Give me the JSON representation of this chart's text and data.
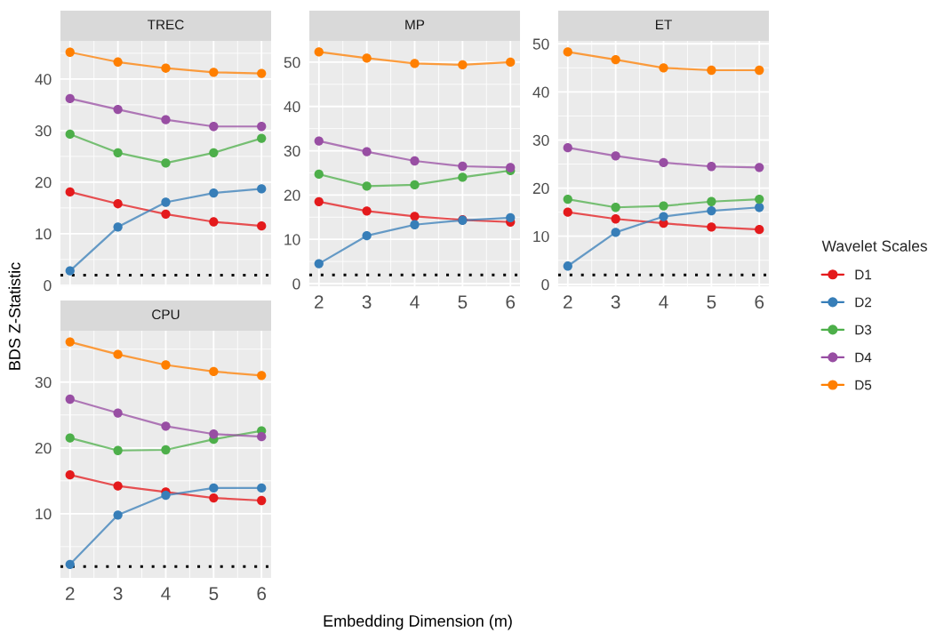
{
  "chart_data": [
    {
      "type": "line",
      "title": "TREC",
      "ylabel": "BDS Z-Statistic",
      "legend": "right",
      "legend_title": "Wavelet Scales",
      "grid": true,
      "marker": "circle",
      "line_style": "solid",
      "tick_labels": "y",
      "x": [
        2,
        3,
        4,
        5,
        6
      ],
      "xlim": [
        1.8,
        6.2
      ],
      "xticks": [
        2,
        3,
        4,
        5,
        6
      ],
      "ylim": [
        -0.2,
        47.4
      ],
      "yticks": [
        0,
        10,
        20,
        30,
        40
      ],
      "ref_lines": [
        {
          "axis": "y",
          "value": 1.96,
          "color": "#000000",
          "line_style": "dotted"
        }
      ],
      "series": [
        {
          "name": "D1",
          "color": "#e41a1c",
          "values": [
            18.1,
            15.8,
            13.8,
            12.3,
            11.5
          ]
        },
        {
          "name": "D2",
          "color": "#377eb8",
          "values": [
            2.8,
            11.3,
            16.1,
            17.9,
            18.7
          ]
        },
        {
          "name": "D3",
          "color": "#4daf4a",
          "values": [
            29.3,
            25.7,
            23.7,
            25.7,
            28.5
          ]
        },
        {
          "name": "D4",
          "color": "#984ea3",
          "values": [
            36.2,
            34.1,
            32.1,
            30.8,
            30.8
          ]
        },
        {
          "name": "D5",
          "color": "#ff7f00",
          "values": [
            45.2,
            43.3,
            42.1,
            41.3,
            41.1
          ]
        }
      ]
    },
    {
      "type": "line",
      "title": "MP",
      "grid": true,
      "marker": "circle",
      "line_style": "solid",
      "x": [
        2,
        3,
        4,
        5,
        6
      ],
      "xlim": [
        1.8,
        6.2
      ],
      "xticks": [
        2,
        3,
        4,
        5,
        6
      ],
      "ylim": [
        -0.6,
        54.8
      ],
      "yticks": [
        0,
        10,
        20,
        30,
        40,
        50
      ],
      "ref_lines": [
        {
          "axis": "y",
          "value": 1.96,
          "color": "#000000",
          "line_style": "dotted"
        }
      ],
      "series": [
        {
          "color": "#e41a1c",
          "values": [
            18.5,
            16.4,
            15.2,
            14.4,
            13.9
          ]
        },
        {
          "color": "#377eb8",
          "values": [
            4.5,
            10.8,
            13.3,
            14.3,
            14.9
          ]
        },
        {
          "color": "#4daf4a",
          "values": [
            24.7,
            22.0,
            22.3,
            24.0,
            25.5
          ]
        },
        {
          "color": "#984ea3",
          "values": [
            32.2,
            29.8,
            27.7,
            26.5,
            26.2
          ]
        },
        {
          "color": "#ff7f00",
          "values": [
            52.3,
            50.9,
            49.7,
            49.4,
            50.0
          ]
        }
      ]
    },
    {
      "type": "line",
      "title": "ET",
      "grid": true,
      "marker": "circle",
      "line_style": "solid",
      "x": [
        2,
        3,
        4,
        5,
        6
      ],
      "xlim": [
        1.8,
        6.2
      ],
      "xticks": [
        2,
        3,
        4,
        5,
        6
      ],
      "ylim": [
        -0.4,
        50.6
      ],
      "yticks": [
        0,
        10,
        20,
        30,
        40,
        50
      ],
      "ref_lines": [
        {
          "axis": "y",
          "value": 1.96,
          "color": "#000000",
          "line_style": "dotted"
        }
      ],
      "series": [
        {
          "color": "#e41a1c",
          "values": [
            15.0,
            13.6,
            12.7,
            11.9,
            11.4
          ]
        },
        {
          "color": "#377eb8",
          "values": [
            3.8,
            10.8,
            14.1,
            15.3,
            16.0
          ]
        },
        {
          "color": "#4daf4a",
          "values": [
            17.7,
            16.0,
            16.3,
            17.2,
            17.7
          ]
        },
        {
          "color": "#984ea3",
          "values": [
            28.4,
            26.7,
            25.3,
            24.5,
            24.3
          ]
        },
        {
          "color": "#ff7f00",
          "values": [
            48.3,
            46.7,
            45.0,
            44.5,
            44.5
          ]
        }
      ]
    },
    {
      "type": "line",
      "title": "CPU",
      "xlabel": "Embedding Dimension (m)",
      "grid": true,
      "marker": "circle",
      "line_style": "solid",
      "x": [
        2,
        3,
        4,
        5,
        6
      ],
      "xlim": [
        1.8,
        6.2
      ],
      "xticks": [
        2,
        3,
        4,
        5,
        6
      ],
      "ylim": [
        0.25,
        37.8
      ],
      "yticks": [
        10,
        20,
        30
      ],
      "ref_lines": [
        {
          "axis": "y",
          "value": 1.96,
          "color": "#000000",
          "line_style": "dotted"
        }
      ],
      "series": [
        {
          "color": "#e41a1c",
          "values": [
            15.9,
            14.2,
            13.3,
            12.4,
            12.0
          ]
        },
        {
          "color": "#377eb8",
          "values": [
            2.3,
            9.8,
            12.8,
            13.9,
            13.9
          ]
        },
        {
          "color": "#4daf4a",
          "values": [
            21.5,
            19.6,
            19.7,
            21.3,
            22.6
          ]
        },
        {
          "color": "#984ea3",
          "values": [
            27.4,
            25.3,
            23.3,
            22.1,
            21.7
          ]
        },
        {
          "color": "#ff7f00",
          "values": [
            36.1,
            34.2,
            32.6,
            31.6,
            31.0
          ]
        }
      ]
    }
  ]
}
